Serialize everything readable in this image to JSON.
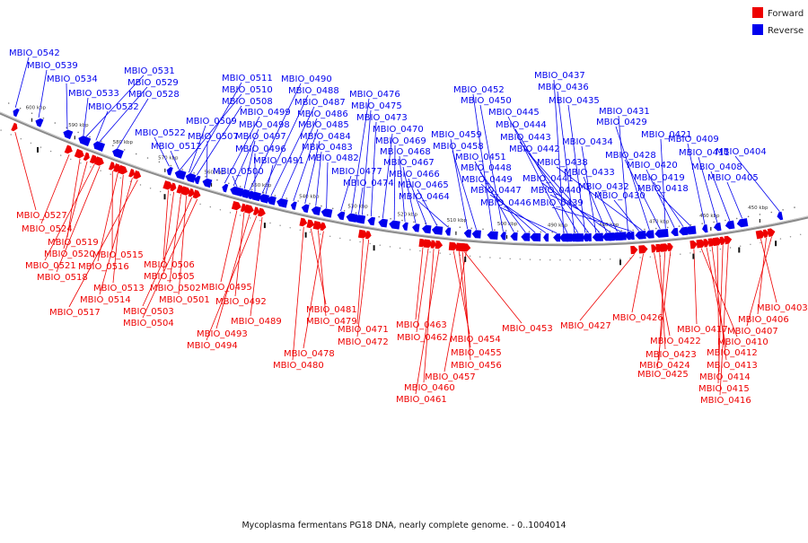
{
  "legend": {
    "forward": {
      "label": "Forward",
      "color": "#ee0000"
    },
    "reverse": {
      "label": "Reverse",
      "color": "#0000ee"
    }
  },
  "caption": "Mycoplasma fermentans PG18 DNA, nearly complete genome. - 0..1004014",
  "scale_labels": [
    "600 kbp",
    "590 kbp",
    "580 kbp",
    "570 kbp",
    "560 kbp",
    "550 kbp",
    "540 kbp",
    "530 kbp",
    "520 kbp",
    "510 kbp",
    "500 kbp",
    "490 kbp",
    "480 kbp",
    "470 kbp",
    "460 kbp",
    "450 kbp"
  ],
  "reverse_genes": [
    "MBIO_0542",
    "MBIO_0539",
    "MBIO_0534",
    "MBIO_0533",
    "MBIO_0532",
    "MBIO_0531",
    "MBIO_0529",
    "MBIO_0528",
    "MBIO_0522",
    "MBIO_0512",
    "MBIO_0511",
    "MBIO_0510",
    "MBIO_0508",
    "MBIO_0509",
    "MBIO_0507",
    "MBIO_0500",
    "MBIO_0490",
    "MBIO_0488",
    "MBIO_0487",
    "MBIO_0486",
    "MBIO_0485",
    "MBIO_0484",
    "MBIO_0483",
    "MBIO_0482",
    "MBIO_0499",
    "MBIO_0498",
    "MBIO_0497",
    "MBIO_0496",
    "MBIO_0491",
    "MBIO_0477",
    "MBIO_0474",
    "MBIO_0476",
    "MBIO_0475",
    "MBIO_0473",
    "MBIO_0470",
    "MBIO_0469",
    "MBIO_0468",
    "MBIO_0467",
    "MBIO_0466",
    "MBIO_0465",
    "MBIO_0464",
    "MBIO_0459",
    "MBIO_0458",
    "MBIO_0452",
    "MBIO_0450",
    "MBIO_0451",
    "MBIO_0448",
    "MBIO_0449",
    "MBIO_0447",
    "MBIO_0446",
    "MBIO_0445",
    "MBIO_0444",
    "MBIO_0443",
    "MBIO_0442",
    "MBIO_0441",
    "MBIO_0440",
    "MBIO_0439",
    "MBIO_0438",
    "MBIO_0437",
    "MBIO_0436",
    "MBIO_0435",
    "MBIO_0434",
    "MBIO_0433",
    "MBIO_0432",
    "MBIO_0431",
    "MBIO_0430",
    "MBIO_0429",
    "MBIO_0428",
    "MBIO_0421",
    "MBIO_0420",
    "MBIO_0419",
    "MBIO_0418",
    "MBIO_0409",
    "MBIO_0411",
    "MBIO_0408",
    "MBIO_0405",
    "MBIO_0404"
  ],
  "forward_genes": [
    "MBIO_0527",
    "MBIO_0524",
    "MBIO_0519",
    "MBIO_0520",
    "MBIO_0521",
    "MBIO_0518",
    "MBIO_0515",
    "MBIO_0516",
    "MBIO_0513",
    "MBIO_0514",
    "MBIO_0517",
    "MBIO_0506",
    "MBIO_0505",
    "MBIO_0502",
    "MBIO_0501",
    "MBIO_0503",
    "MBIO_0504",
    "MBIO_0495",
    "MBIO_0492",
    "MBIO_0489",
    "MBIO_0493",
    "MBIO_0494",
    "MBIO_0481",
    "MBIO_0479",
    "MBIO_0478",
    "MBIO_0480",
    "MBIO_0471",
    "MBIO_0472",
    "MBIO_0463",
    "MBIO_0462",
    "MBIO_0460",
    "MBIO_0461",
    "MBIO_0454",
    "MBIO_0455",
    "MBIO_0456",
    "MBIO_0457",
    "MBIO_0453",
    "MBIO_0427",
    "MBIO_0426",
    "MBIO_0422",
    "MBIO_0423",
    "MBIO_0424",
    "MBIO_0425",
    "MBIO_0417",
    "MBIO_0410",
    "MBIO_0412",
    "MBIO_0413",
    "MBIO_0414",
    "MBIO_0415",
    "MBIO_0416",
    "MBIO_0403",
    "MBIO_0406",
    "MBIO_0407"
  ]
}
